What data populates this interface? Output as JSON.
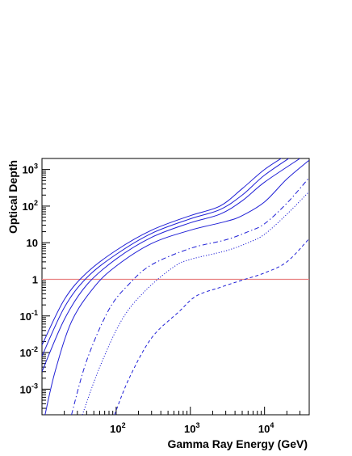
{
  "chart_data": {
    "type": "line",
    "title": "",
    "xlabel": "Gamma Ray Energy (GeV)",
    "ylabel": "Optical Depth",
    "x_scale": "log",
    "y_scale": "log",
    "xlim": [
      10,
      40000
    ],
    "ylim": [
      0.0002,
      2000
    ],
    "grid": false,
    "legend": "none",
    "x_tick_labels": [
      {
        "value": 100,
        "base": "10",
        "exp": "2"
      },
      {
        "value": 1000,
        "base": "10",
        "exp": "3"
      },
      {
        "value": 10000,
        "base": "10",
        "exp": "4"
      }
    ],
    "y_tick_labels": [
      {
        "value": 0.001,
        "base": "10",
        "exp": "-3"
      },
      {
        "value": 0.01,
        "base": "10",
        "exp": "-2"
      },
      {
        "value": 0.1,
        "base": "10",
        "exp": "-1"
      },
      {
        "value": 1,
        "base": "1",
        "exp": ""
      },
      {
        "value": 10,
        "base": "10",
        "exp": ""
      },
      {
        "value": 100,
        "base": "10",
        "exp": "2"
      },
      {
        "value": 1000,
        "base": "10",
        "exp": "3"
      }
    ],
    "reference_line": {
      "y": 1,
      "color": "#e88080"
    },
    "series_color": "#1f1fd6",
    "series": [
      {
        "style": "solid",
        "points": [
          [
            10,
            0.016
          ],
          [
            20,
            0.28
          ],
          [
            40,
            1.5
          ],
          [
            100,
            6.2
          ],
          [
            300,
            22
          ],
          [
            1000,
            55
          ],
          [
            2500,
            100
          ],
          [
            5000,
            300
          ],
          [
            10000,
            1000
          ],
          [
            20000,
            2500
          ]
        ]
      },
      {
        "style": "solid",
        "points": [
          [
            10,
            0.008
          ],
          [
            20,
            0.17
          ],
          [
            40,
            1.1
          ],
          [
            100,
            4.8
          ],
          [
            300,
            18
          ],
          [
            1000,
            45
          ],
          [
            2500,
            80
          ],
          [
            5000,
            200
          ],
          [
            10000,
            700
          ],
          [
            25000,
            2500
          ]
        ]
      },
      {
        "style": "solid",
        "points": [
          [
            10,
            0.003
          ],
          [
            20,
            0.08
          ],
          [
            40,
            0.7
          ],
          [
            100,
            3.6
          ],
          [
            300,
            14
          ],
          [
            1000,
            35
          ],
          [
            2500,
            60
          ],
          [
            5000,
            140
          ],
          [
            10000,
            450
          ],
          [
            30000,
            2000
          ]
        ]
      },
      {
        "style": "solid",
        "points": [
          [
            11,
            0.0002
          ],
          [
            15,
            0.003
          ],
          [
            25,
            0.07
          ],
          [
            50,
            0.6
          ],
          [
            100,
            2.3
          ],
          [
            300,
            9.5
          ],
          [
            1000,
            22
          ],
          [
            3000,
            38
          ],
          [
            5000,
            55
          ],
          [
            10000,
            130
          ],
          [
            20000,
            550
          ],
          [
            40000,
            1800
          ]
        ]
      },
      {
        "style": "dashdot",
        "points": [
          [
            25,
            0.0002
          ],
          [
            40,
            0.006
          ],
          [
            80,
            0.15
          ],
          [
            150,
            0.75
          ],
          [
            300,
            2.5
          ],
          [
            1000,
            7
          ],
          [
            3000,
            12
          ],
          [
            6000,
            20
          ],
          [
            10000,
            33
          ],
          [
            20000,
            120
          ],
          [
            40000,
            600
          ]
        ]
      },
      {
        "style": "dotted",
        "points": [
          [
            35,
            0.0002
          ],
          [
            60,
            0.004
          ],
          [
            120,
            0.08
          ],
          [
            250,
            0.5
          ],
          [
            600,
            2.2
          ],
          [
            1000,
            3.5
          ],
          [
            3000,
            6
          ],
          [
            6000,
            10
          ],
          [
            10000,
            17
          ],
          [
            20000,
            60
          ],
          [
            40000,
            250
          ]
        ]
      },
      {
        "style": "dashed",
        "points": [
          [
            95,
            0.0002
          ],
          [
            150,
            0.002
          ],
          [
            300,
            0.025
          ],
          [
            700,
            0.13
          ],
          [
            1200,
            0.35
          ],
          [
            2500,
            0.6
          ],
          [
            5000,
            0.95
          ],
          [
            10000,
            1.5
          ],
          [
            20000,
            3
          ],
          [
            40000,
            13
          ]
        ]
      }
    ]
  }
}
